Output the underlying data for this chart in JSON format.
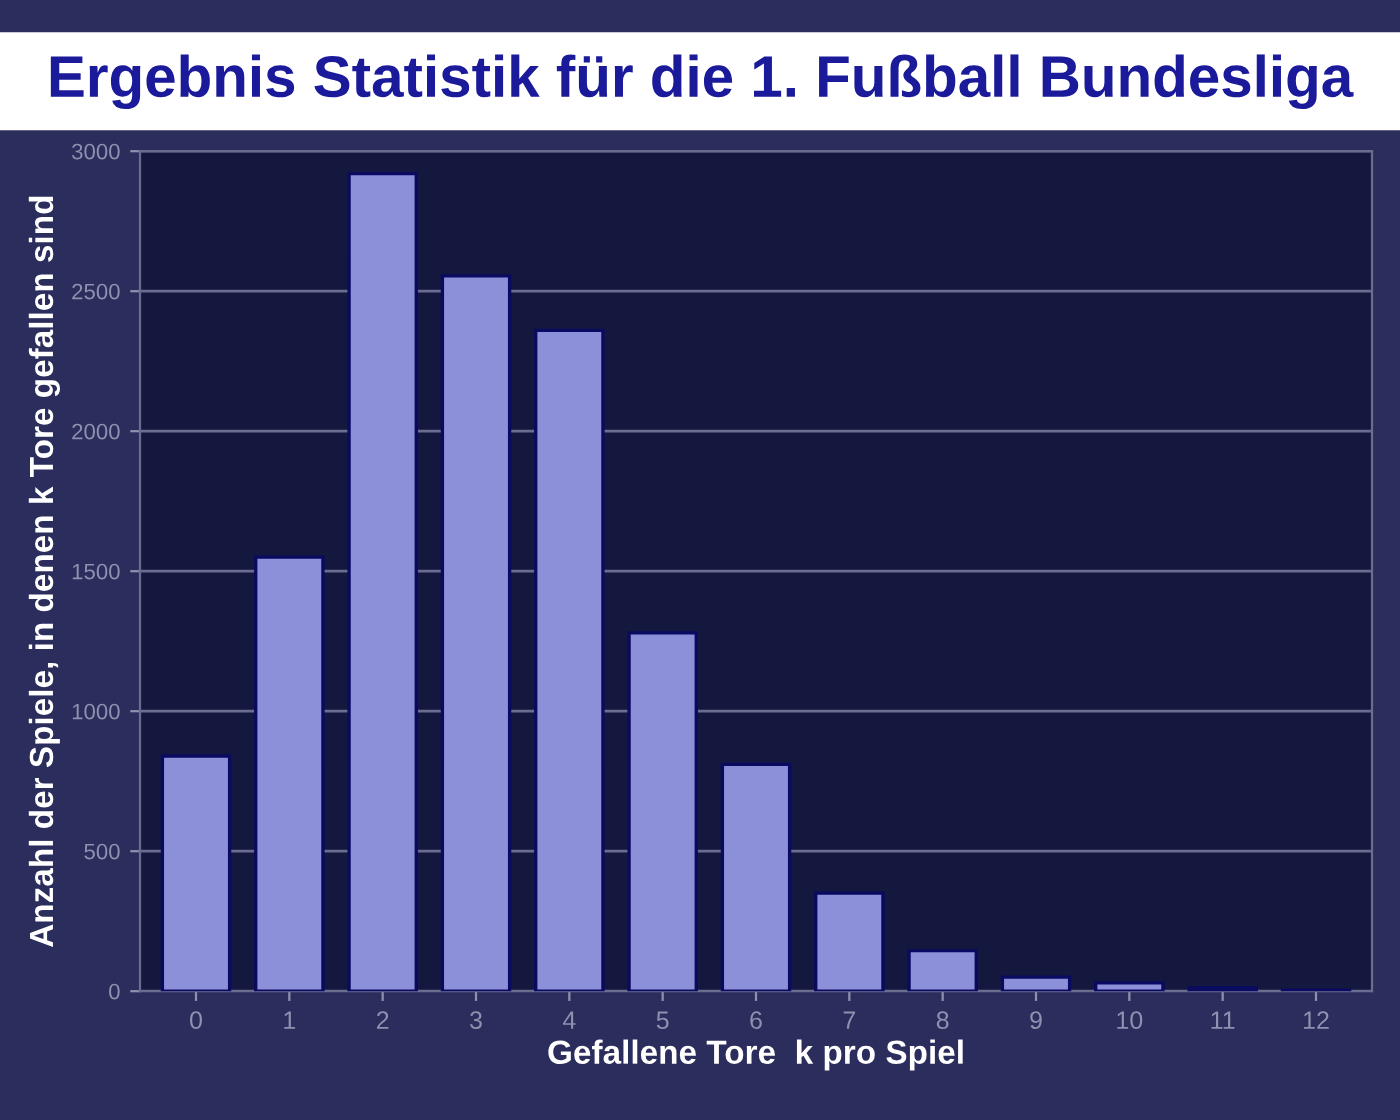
{
  "chart_data": {
    "type": "bar",
    "title": "Ergebnis Statistik für die 1. Fußball Bundesliga",
    "xlabel": "Gefallene Tore  k pro Spiel",
    "ylabel": "Anzahl der Spiele, in denen k Tore gefallen sind",
    "categories": [
      "0",
      "1",
      "2",
      "3",
      "4",
      "5",
      "6",
      "7",
      "8",
      "9",
      "10",
      "11",
      "12"
    ],
    "values": [
      840,
      1550,
      2920,
      2555,
      2360,
      1280,
      810,
      350,
      145,
      50,
      30,
      12,
      4
    ],
    "color": "#8c90d8",
    "ylim": [
      0,
      3000
    ],
    "yticks": [
      0,
      500,
      1000,
      1500,
      2000,
      2500,
      3000
    ],
    "grid": "y"
  }
}
